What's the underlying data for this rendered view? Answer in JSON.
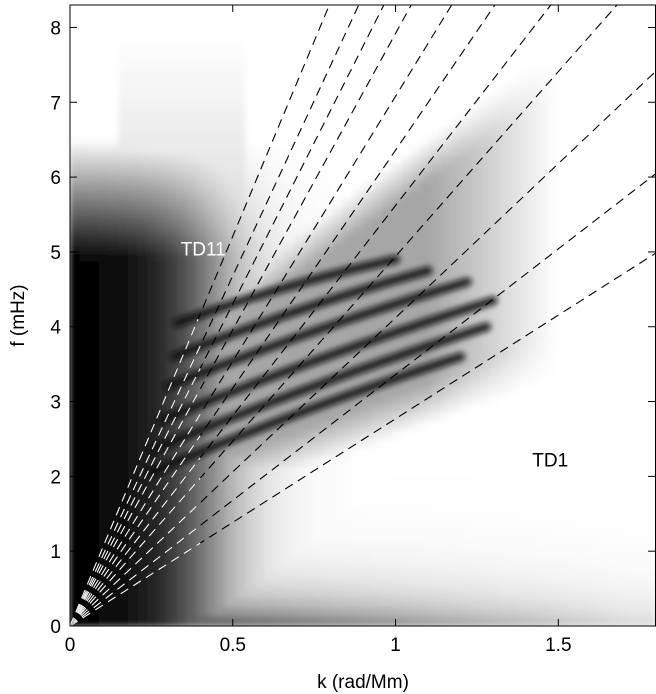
{
  "chart_data": {
    "type": "heatmap",
    "title": "",
    "xlabel": "k (rad/Mm)",
    "ylabel": "f (mHz)",
    "xlim": [
      0,
      1.8
    ],
    "ylim": [
      0,
      8.3
    ],
    "xticks": [
      0,
      0.5,
      1,
      1.5
    ],
    "xtick_labels": [
      "0",
      "0.5",
      "1",
      "1.5"
    ],
    "yticks": [
      0,
      1,
      2,
      3,
      4,
      5,
      6,
      7,
      8
    ],
    "ytick_labels": [
      "0",
      "1",
      "2",
      "3",
      "4",
      "5",
      "6",
      "7",
      "8"
    ],
    "colormap": "grayscale (black = high power, white = low power)",
    "grid": false,
    "ridges": [
      {
        "name": "",
        "x": [
          0.25,
          1.2
        ],
        "y": [
          2.05,
          3.6
        ]
      },
      {
        "name": "",
        "x": [
          0.25,
          1.28
        ],
        "y": [
          2.35,
          4.0
        ]
      },
      {
        "name": "",
        "x": [
          0.28,
          1.3
        ],
        "y": [
          2.75,
          4.35
        ]
      },
      {
        "name": "",
        "x": [
          0.3,
          1.22
        ],
        "y": [
          3.2,
          4.6
        ]
      },
      {
        "name": "",
        "x": [
          0.32,
          1.1
        ],
        "y": [
          3.6,
          4.75
        ]
      },
      {
        "name": "",
        "x": [
          0.33,
          1.0
        ],
        "y": [
          4.05,
          4.9
        ]
      }
    ],
    "dashed_lines_slopes": [
      2.77,
      3.36,
      4.12,
      4.94,
      5.62,
      6.36,
      7.08,
      7.92,
      8.61,
      9.36,
      10.42
    ],
    "dashed_line_note_color": "white over dark region, black over light region",
    "annotations": [
      {
        "text": "TD11",
        "x": 0.34,
        "y": 4.95,
        "color": "#ffffff"
      },
      {
        "text": "TD1",
        "x": 1.42,
        "y": 2.13,
        "color": "#000000"
      }
    ]
  }
}
